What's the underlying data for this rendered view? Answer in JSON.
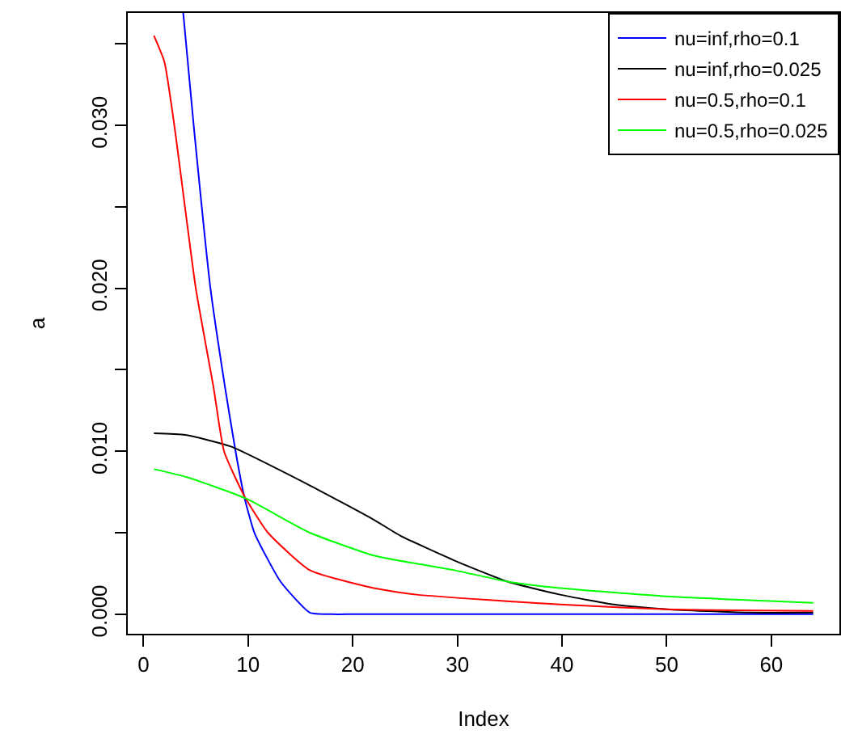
{
  "chart_data": {
    "type": "line",
    "xlabel": "Index",
    "ylabel": "a",
    "xlim": [
      -1.5,
      66.5
    ],
    "ylim": [
      -0.0012,
      0.0369
    ],
    "xticks": [
      0,
      10,
      20,
      30,
      40,
      50,
      60
    ],
    "yticks": [
      {
        "value": 0,
        "label": "0.000"
      },
      {
        "value": 0.005,
        "label": null
      },
      {
        "value": 0.01,
        "label": "0.010"
      },
      {
        "value": 0.015,
        "label": null
      },
      {
        "value": 0.02,
        "label": "0.020"
      },
      {
        "value": 0.025,
        "label": null
      },
      {
        "value": 0.03,
        "label": "0.030"
      },
      {
        "value": 0.035,
        "label": null
      }
    ],
    "legend": "top right",
    "marker": "none",
    "line_style": "solid",
    "series": [
      {
        "name": "nu=inf,rho=0.1",
        "color": "#0000ff",
        "x": [
          3.8,
          4.8,
          6.4,
          7.8,
          8.8,
          9.6,
          10.6,
          13.1,
          15.9,
          18,
          20,
          30,
          40,
          50,
          64
        ],
        "values": [
          0.0369,
          0.03,
          0.02,
          0.0139,
          0.01,
          0.0073,
          0.005,
          0.002,
          0.0001,
          0,
          0,
          0,
          0,
          0,
          0
        ]
      },
      {
        "name": "nu=inf,rho=0.025",
        "color": "#000000",
        "x": [
          1,
          4,
          8.3,
          15.9,
          22,
          24.6,
          29.7,
          34.8,
          39.8,
          44.9,
          50,
          57.8,
          64
        ],
        "values": [
          0.0111,
          0.011,
          0.0103,
          0.0079,
          0.0058,
          0.0048,
          0.0033,
          0.002,
          0.0012,
          0.0006,
          0.0003,
          0.0001,
          0.0001
        ]
      },
      {
        "name": "nu=0.5,rho=0.1",
        "color": "#ff0000",
        "x": [
          1,
          2,
          2.95,
          5,
          6.7,
          7.7,
          9.6,
          11.9,
          15.9,
          22,
          26.1,
          39.8,
          50,
          64
        ],
        "values": [
          0.0355,
          0.0339,
          0.03,
          0.02,
          0.0139,
          0.01,
          0.0073,
          0.005,
          0.0027,
          0.0016,
          0.0012,
          0.0006,
          0.0003,
          0.0002
        ]
      },
      {
        "name": "nu=0.5,rho=0.025",
        "color": "#00ff00",
        "x": [
          1,
          4.2,
          9.8,
          15.9,
          22,
          26.1,
          29.7,
          34.8,
          39.8,
          50,
          64
        ],
        "values": [
          0.0089,
          0.0084,
          0.0071,
          0.005,
          0.0036,
          0.0031,
          0.0027,
          0.002,
          0.0016,
          0.0011,
          0.0007
        ]
      }
    ]
  }
}
